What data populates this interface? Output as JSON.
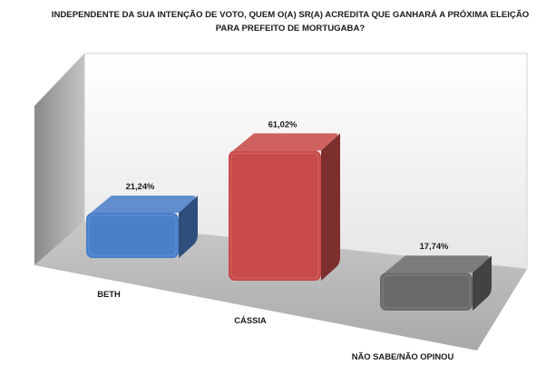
{
  "chart_data": {
    "type": "bar",
    "title_lines": [
      "INDEPENDENTE DA SUA INTENÇÃO DE VOTO, QUEM O(A) SR(A) ACREDITA QUE GANHARÁ A PRÓXIMA ELEIÇÃO",
      "PARA PREFEITO DE MORTUGABA?"
    ],
    "categories": [
      "BETH",
      "CÁSSIA",
      "NÃO SABE/NÃO OPINOU"
    ],
    "values": [
      21.24,
      61.02,
      17.74
    ],
    "value_labels": [
      "21,24%",
      "61,02%",
      "17,74%"
    ],
    "colors": [
      "#4a7fc9",
      "#c94b49",
      "#6a6a6a"
    ],
    "ylim": [
      0,
      100
    ],
    "grid": false,
    "style": "3d-column"
  }
}
